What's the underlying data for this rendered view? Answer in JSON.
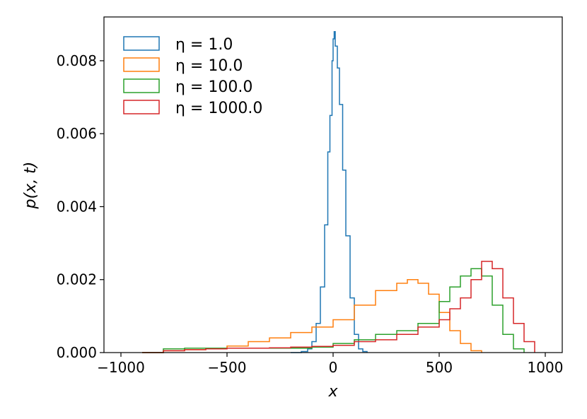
{
  "chart_data": {
    "type": "histogram-step",
    "title": "",
    "xlabel": "x",
    "ylabel": "p(x, t)",
    "xlim": [
      -1080,
      1080
    ],
    "ylim": [
      0,
      0.0092
    ],
    "xticks": [
      -1000,
      -500,
      0,
      500,
      1000
    ],
    "xtick_labels": [
      "−1000",
      "−500",
      "0",
      "500",
      "1000"
    ],
    "yticks": [
      0,
      0.002,
      0.004,
      0.006,
      0.008
    ],
    "ytick_labels": [
      "0.000",
      "0.002",
      "0.004",
      "0.006",
      "0.008"
    ],
    "grid": false,
    "legend_position": "top-left",
    "series": [
      {
        "name": "η = 1.0",
        "color": "#1f77b4",
        "points": [
          [
            -200,
            0
          ],
          [
            -150,
            3e-05
          ],
          [
            -120,
            0.0001
          ],
          [
            -100,
            0.0003
          ],
          [
            -80,
            0.0008
          ],
          [
            -60,
            0.0018
          ],
          [
            -40,
            0.0035
          ],
          [
            -25,
            0.0055
          ],
          [
            -15,
            0.0065
          ],
          [
            -5,
            0.008
          ],
          [
            0,
            0.0086
          ],
          [
            5,
            0.0088
          ],
          [
            10,
            0.0084
          ],
          [
            20,
            0.0078
          ],
          [
            30,
            0.0068
          ],
          [
            45,
            0.005
          ],
          [
            60,
            0.0032
          ],
          [
            80,
            0.0015
          ],
          [
            100,
            0.0005
          ],
          [
            120,
            0.0001
          ],
          [
            140,
            3e-05
          ],
          [
            160,
            0.0
          ]
        ]
      },
      {
        "name": "η = 10.0",
        "color": "#ff7f0e",
        "points": [
          [
            -900,
            0.0
          ],
          [
            -800,
            5e-05
          ],
          [
            -700,
            8e-05
          ],
          [
            -600,
            0.00012
          ],
          [
            -500,
            0.00018
          ],
          [
            -400,
            0.0003
          ],
          [
            -300,
            0.0004
          ],
          [
            -200,
            0.00055
          ],
          [
            -100,
            0.0007
          ],
          [
            0,
            0.0009
          ],
          [
            100,
            0.0013
          ],
          [
            200,
            0.0017
          ],
          [
            300,
            0.0019
          ],
          [
            350,
            0.002
          ],
          [
            400,
            0.0019
          ],
          [
            450,
            0.0016
          ],
          [
            500,
            0.0011
          ],
          [
            550,
            0.0006
          ],
          [
            600,
            0.00025
          ],
          [
            650,
            5e-05
          ],
          [
            700,
            0.0
          ]
        ]
      },
      {
        "name": "η = 100.0",
        "color": "#2ca02c",
        "points": [
          [
            -900,
            0.0
          ],
          [
            -800,
            0.0001
          ],
          [
            -700,
            0.00012
          ],
          [
            -600,
            0.00012
          ],
          [
            -500,
            0.00012
          ],
          [
            -400,
            0.00012
          ],
          [
            -300,
            0.00012
          ],
          [
            -200,
            0.00012
          ],
          [
            -100,
            0.00015
          ],
          [
            0,
            0.00025
          ],
          [
            100,
            0.00035
          ],
          [
            200,
            0.0005
          ],
          [
            300,
            0.0006
          ],
          [
            400,
            0.0008
          ],
          [
            500,
            0.0014
          ],
          [
            550,
            0.0018
          ],
          [
            600,
            0.0021
          ],
          [
            650,
            0.0023
          ],
          [
            700,
            0.0021
          ],
          [
            750,
            0.0013
          ],
          [
            800,
            0.0005
          ],
          [
            850,
            0.0001
          ],
          [
            900,
            0.0
          ]
        ]
      },
      {
        "name": "η = 1000.0",
        "color": "#d62728",
        "points": [
          [
            -900,
            0.0
          ],
          [
            -800,
            5e-05
          ],
          [
            -700,
            8e-05
          ],
          [
            -600,
            0.0001
          ],
          [
            -500,
            0.00012
          ],
          [
            -400,
            0.00012
          ],
          [
            -300,
            0.00013
          ],
          [
            -200,
            0.00015
          ],
          [
            -100,
            0.00017
          ],
          [
            0,
            0.0002
          ],
          [
            100,
            0.0003
          ],
          [
            200,
            0.00035
          ],
          [
            300,
            0.0005
          ],
          [
            400,
            0.0007
          ],
          [
            500,
            0.0009
          ],
          [
            550,
            0.0012
          ],
          [
            600,
            0.0015
          ],
          [
            650,
            0.002
          ],
          [
            700,
            0.0025
          ],
          [
            750,
            0.0023
          ],
          [
            800,
            0.0015
          ],
          [
            850,
            0.0008
          ],
          [
            900,
            0.0003
          ],
          [
            950,
            0.0
          ]
        ]
      }
    ]
  }
}
